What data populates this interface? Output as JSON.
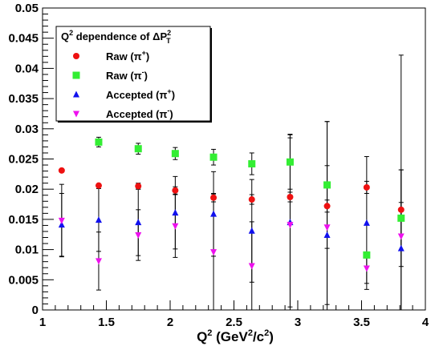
{
  "chart_data": {
    "type": "scatter",
    "title": "",
    "xlabel_main": "Q",
    "xlabel_sup1": "2",
    "xlabel_rest1": " (GeV",
    "xlabel_sup2": "2",
    "xlabel_rest2": "/c",
    "xlabel_sup3": "2",
    "xlabel_rest3": ")",
    "ylabel": "",
    "xlim": [
      1,
      4
    ],
    "ylim": [
      0,
      0.05
    ],
    "x_ticks": [
      "1",
      "1.5",
      "2",
      "2.5",
      "3",
      "3.5",
      "4"
    ],
    "y_ticks": [
      "0",
      "0.005",
      "0.01",
      "0.015",
      "0.02",
      "0.025",
      "0.03",
      "0.035",
      "0.04",
      "0.045",
      "0.05"
    ],
    "grid": false,
    "legend_placement": "top-left",
    "legend_title_q": "Q",
    "legend_title_sup": "2",
    "legend_title_mid": " dependence of ΔP",
    "legend_title_sup2": "2",
    "legend_title_sub2": "T",
    "series": [
      {
        "name": "Raw (π⁺)",
        "label_main": "Raw (π",
        "label_sup": "+",
        "label_end": ")",
        "color": "#ee1111",
        "marker": "circle",
        "x": [
          1.15,
          1.44,
          1.75,
          2.04,
          2.34,
          2.64,
          2.94,
          3.23,
          3.54,
          3.81
        ],
        "y": [
          0.0231,
          0.0206,
          0.0205,
          0.0198,
          0.0186,
          0.0183,
          0.0187,
          0.0172,
          0.0203,
          0.0166
        ],
        "err": [
          0,
          0,
          0.0005,
          0.0006,
          0.0007,
          0.0008,
          0.0008,
          0.001,
          0.001,
          0.0012
        ]
      },
      {
        "name": "Raw (π⁻)",
        "label_main": "Raw (π",
        "label_sup": "-",
        "label_end": ")",
        "color": "#33ee33",
        "marker": "square",
        "x": [
          1.44,
          1.75,
          2.04,
          2.34,
          2.64,
          2.94,
          3.23,
          3.54,
          3.81
        ],
        "y": [
          0.0278,
          0.0267,
          0.0259,
          0.0253,
          0.0242,
          0.0245,
          0.0207,
          0.0091,
          0.0152
        ],
        "err": [
          0.0008,
          0.0009,
          0.001,
          0.0013,
          0.0018,
          0.0045,
          0.0105,
          0.0,
          0.008
        ]
      },
      {
        "name": "Accepted (π⁺)",
        "label_main": "Accepted (π",
        "label_sup": "+",
        "label_end": ")",
        "color": "#1111ee",
        "marker": "triangle-up",
        "x": [
          1.15,
          1.44,
          1.75,
          2.04,
          2.34,
          2.64,
          2.94,
          3.23,
          3.54,
          3.81
        ],
        "y": [
          0.0141,
          0.0149,
          0.0145,
          0.0161,
          0.0159,
          0.0131,
          0.0145,
          0.0124,
          0.0144,
          0.0102
        ],
        "err": [
          0.0052,
          0.0052,
          0.0055,
          0.006,
          0.007,
          0.0085,
          0.014,
          0.0115,
          0.011,
          0.013
        ]
      },
      {
        "name": "Accepted (π⁻)",
        "label_main": "Accepted (π",
        "label_sup": "-",
        "label_end": ")",
        "color": "#ee11ee",
        "marker": "triangle-down",
        "x": [
          1.15,
          1.44,
          1.75,
          2.04,
          2.34,
          2.64,
          2.94,
          3.23,
          3.54,
          3.81
        ],
        "y": [
          0.0148,
          0.0081,
          0.0124,
          0.0139,
          0.0096,
          0.0073,
          0.0141,
          0.0137,
          0.0069,
          0.0122
        ],
        "err": [
          0.006,
          0.0048,
          0.0042,
          0.0052,
          0.0096,
          0.0073,
          0.015,
          0.0175,
          0.0025,
          0.03
        ]
      }
    ]
  }
}
